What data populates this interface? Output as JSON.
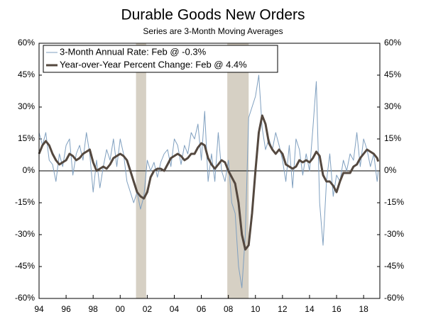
{
  "chart_data": {
    "type": "line",
    "title": "Durable Goods New Orders",
    "subtitle": "Series are 3-Month Moving Averages",
    "x": [
      1994,
      1994.25,
      1994.5,
      1994.75,
      1995,
      1995.25,
      1995.5,
      1995.75,
      1996,
      1996.25,
      1996.5,
      1996.75,
      1997,
      1997.25,
      1997.5,
      1997.75,
      1998,
      1998.25,
      1998.5,
      1998.75,
      1999,
      1999.25,
      1999.5,
      1999.75,
      2000,
      2000.25,
      2000.5,
      2000.75,
      2001,
      2001.25,
      2001.5,
      2001.75,
      2002,
      2002.25,
      2002.5,
      2002.75,
      2003,
      2003.25,
      2003.5,
      2003.75,
      2004,
      2004.25,
      2004.5,
      2004.75,
      2005,
      2005.25,
      2005.5,
      2005.75,
      2006,
      2006.25,
      2006.5,
      2006.75,
      2007,
      2007.25,
      2007.5,
      2007.75,
      2008,
      2008.25,
      2008.5,
      2008.75,
      2009,
      2009.25,
      2009.5,
      2009.75,
      2010,
      2010.25,
      2010.5,
      2010.75,
      2011,
      2011.25,
      2011.5,
      2011.75,
      2012,
      2012.25,
      2012.5,
      2012.75,
      2013,
      2013.25,
      2013.5,
      2013.75,
      2014,
      2014.25,
      2014.5,
      2014.75,
      2015,
      2015.25,
      2015.5,
      2015.75,
      2016,
      2016.25,
      2016.5,
      2016.75,
      2017,
      2017.25,
      2017.5,
      2017.75,
      2018,
      2018.25,
      2018.5,
      2018.75,
      2019,
      2019.08
    ],
    "series": [
      {
        "name": "3-Month Annual Rate: Feb @ -0.3%",
        "color": "#7f9fbf",
        "width": 1,
        "values": [
          18,
          12,
          18,
          5,
          3,
          -5,
          8,
          2,
          12,
          15,
          -2,
          8,
          12,
          5,
          18,
          8,
          -10,
          5,
          -8,
          2,
          10,
          5,
          15,
          2,
          15,
          8,
          -5,
          -10,
          -15,
          -10,
          -18,
          -12,
          5,
          0,
          4,
          -3,
          4,
          8,
          10,
          2,
          15,
          12,
          3,
          12,
          8,
          18,
          15,
          22,
          5,
          28,
          -5,
          8,
          -5,
          18,
          0,
          -5,
          5,
          -15,
          -20,
          -45,
          -55,
          -30,
          25,
          30,
          35,
          45,
          20,
          10,
          15,
          10,
          18,
          12,
          5,
          -5,
          12,
          -8,
          15,
          10,
          -2,
          8,
          0,
          20,
          42,
          -15,
          -35,
          -5,
          8,
          -12,
          -2,
          -5,
          5,
          0,
          8,
          5,
          18,
          2,
          15,
          10,
          2,
          8,
          -5,
          -0.3
        ]
      },
      {
        "name": "Year-over-Year Percent Change: Feb @ 4.4%",
        "color": "#54483f",
        "width": 3,
        "values": [
          8,
          12,
          14,
          12,
          8,
          5,
          3,
          4,
          5,
          8,
          7,
          5,
          6,
          8,
          9,
          10,
          4,
          0,
          1,
          2,
          1,
          3,
          6,
          7,
          8,
          7,
          5,
          0,
          -5,
          -10,
          -12,
          -13,
          -10,
          -3,
          0,
          1,
          1,
          0,
          3,
          6,
          7,
          8,
          7,
          5,
          6,
          8,
          8,
          11,
          13,
          12,
          6,
          3,
          1,
          3,
          5,
          4,
          0,
          -3,
          -6,
          -15,
          -30,
          -37,
          -35,
          -20,
          0,
          18,
          26,
          22,
          13,
          10,
          8,
          10,
          8,
          3,
          2,
          1,
          2,
          5,
          4,
          5,
          4,
          6,
          9,
          7,
          -2,
          -5,
          -5,
          -7,
          -10,
          -5,
          -1,
          -1,
          -1,
          2,
          3,
          6,
          8,
          10,
          9,
          8,
          6,
          4.4
        ]
      }
    ],
    "shaded_regions": [
      [
        2001.17,
        2001.92
      ],
      [
        2007.92,
        2009.5
      ]
    ],
    "shade_color": "#d6d0c4",
    "xlim": [
      1994,
      2019.2
    ],
    "xticks": [
      {
        "value": 1994,
        "label": "94"
      },
      {
        "value": 1996,
        "label": "96"
      },
      {
        "value": 1998,
        "label": "98"
      },
      {
        "value": 2000,
        "label": "00"
      },
      {
        "value": 2002,
        "label": "02"
      },
      {
        "value": 2004,
        "label": "04"
      },
      {
        "value": 2006,
        "label": "06"
      },
      {
        "value": 2008,
        "label": "08"
      },
      {
        "value": 2010,
        "label": "10"
      },
      {
        "value": 2012,
        "label": "12"
      },
      {
        "value": 2014,
        "label": "14"
      },
      {
        "value": 2016,
        "label": "16"
      },
      {
        "value": 2018,
        "label": "18"
      }
    ],
    "ylim": [
      -60,
      60
    ],
    "yticks": [
      {
        "value": -60,
        "label": "-60%"
      },
      {
        "value": -45,
        "label": "-45%"
      },
      {
        "value": -30,
        "label": "-30%"
      },
      {
        "value": -15,
        "label": "-15%"
      },
      {
        "value": 0,
        "label": "0%"
      },
      {
        "value": 15,
        "label": "15%"
      },
      {
        "value": 30,
        "label": "30%"
      },
      {
        "value": 45,
        "label": "45%"
      },
      {
        "value": 60,
        "label": "60%"
      }
    ],
    "legend": "upper-left"
  }
}
